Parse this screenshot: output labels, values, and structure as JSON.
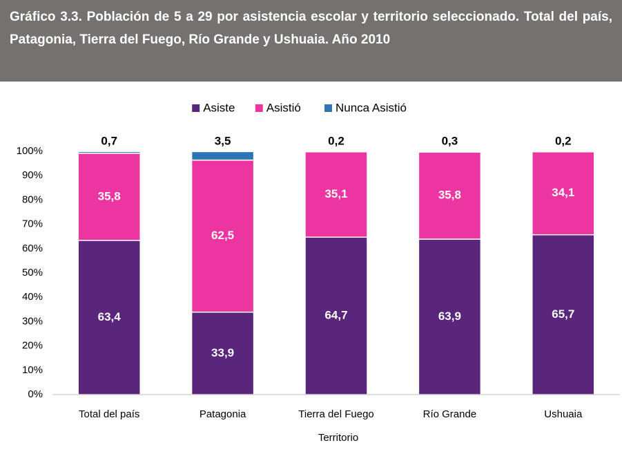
{
  "chart_data": {
    "type": "bar",
    "stacked": true,
    "title": "Gráfico 3.3. Población de 5 a 29 por asistencia escolar y territorio seleccionado. Total del país, Patagonia, Tierra del Fuego, Río Grande y Ushuaia. Año 2010",
    "x_label": "Territorio",
    "categories": [
      "Total del país",
      "Patagonia",
      "Tierra del Fuego",
      "Río Grande",
      "Ushuaia"
    ],
    "series": [
      {
        "name": "Asiste",
        "color": "#59267c",
        "values": [
          63.4,
          33.9,
          64.7,
          63.9,
          65.7
        ],
        "value_labels": [
          "63,4",
          "33,9",
          "64,7",
          "63,9",
          "65,7"
        ]
      },
      {
        "name": "Asistió",
        "color": "#ec35a0",
        "values": [
          35.8,
          62.5,
          35.1,
          35.8,
          34.1
        ],
        "value_labels": [
          "35,8",
          "62,5",
          "35,1",
          "35,8",
          "34,1"
        ]
      },
      {
        "name": "Nunca Asistió",
        "color": "#2e75b6",
        "values": [
          0.7,
          3.5,
          0.2,
          0.3,
          0.2
        ],
        "value_labels": [
          "0,7",
          "3,5",
          "0,2",
          "0,3",
          "0,2"
        ]
      }
    ],
    "ylim": [
      0,
      100
    ],
    "yticks": [
      {
        "value": 0,
        "label": "0%"
      },
      {
        "value": 10,
        "label": "10%"
      },
      {
        "value": 20,
        "label": "20%"
      },
      {
        "value": 30,
        "label": "30%"
      },
      {
        "value": 40,
        "label": "40%"
      },
      {
        "value": 50,
        "label": "50%"
      },
      {
        "value": 60,
        "label": "60%"
      },
      {
        "value": 70,
        "label": "70%"
      },
      {
        "value": 80,
        "label": "80%"
      },
      {
        "value": 90,
        "label": "90%"
      },
      {
        "value": 100,
        "label": "100%"
      }
    ],
    "grid": false,
    "legend": "top"
  }
}
